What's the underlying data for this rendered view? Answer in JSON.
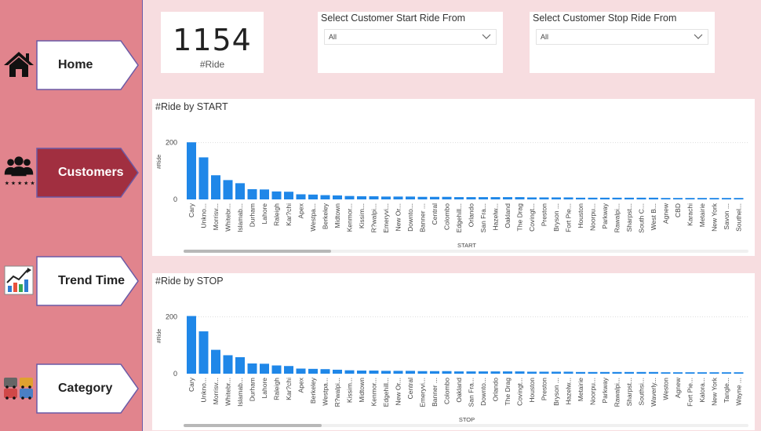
{
  "sidebar": {
    "items": [
      {
        "label": "Home",
        "icon": "home-icon",
        "active": false
      },
      {
        "label": "Customers",
        "icon": "customers-icon",
        "active": true
      },
      {
        "label": "Trend Time",
        "icon": "trend-chart-icon",
        "active": false
      },
      {
        "label": "Category",
        "icon": "cars-icon",
        "active": false
      }
    ]
  },
  "kpi": {
    "value": "1154",
    "label": "#Ride"
  },
  "slicers": [
    {
      "title": "Select Customer Start Ride From",
      "value": "All"
    },
    {
      "title": "Select Customer Stop Ride From",
      "value": "All"
    }
  ],
  "colors": {
    "bar": "#1f87e8",
    "sidebar": "#e1848d",
    "active_nav": "#a12f40"
  },
  "chart_data": [
    {
      "type": "bar",
      "title": "#Ride by START",
      "xlabel": "START",
      "ylabel": "#Ride",
      "ylim": [
        0,
        210
      ],
      "yticks": [
        0,
        200
      ],
      "categories": [
        "Cary",
        "Unkno...",
        "Morrisv...",
        "Whitebr...",
        "Islamab...",
        "Durham",
        "Lahore",
        "Raleigh",
        "Kar?chi",
        "Apex",
        "Westpa...",
        "Berkeley",
        "Midtown",
        "Kenmor...",
        "Kissim...",
        "R?walpi...",
        "Emeryvi...",
        "New Or...",
        "Downto...",
        "Banner ...",
        "Central",
        "Colombo",
        "Edgehill...",
        "Orlando",
        "San Fra...",
        "Hazelw...",
        "Oakland",
        "The Drag",
        "Covingt...",
        "Preston",
        "Bryson ...",
        "Fort Pie...",
        "Houston",
        "Noorpu...",
        "Parkway",
        "Rawalpi...",
        "Sharpst...",
        "South C...",
        "West B...",
        "Agnew",
        "CBD",
        "Karachi",
        "Metairie",
        "New York",
        "Savon ...",
        "Southel..."
      ],
      "values": [
        201,
        148,
        85,
        68,
        57,
        36,
        35,
        28,
        27,
        18,
        17,
        15,
        14,
        12,
        11,
        11,
        10,
        10,
        10,
        9,
        9,
        9,
        8,
        8,
        8,
        8,
        8,
        8,
        7,
        7,
        7,
        7,
        6,
        6,
        6,
        6,
        6,
        6,
        6,
        5,
        5,
        5,
        5,
        5,
        5,
        5
      ],
      "grid": true,
      "legend": "none"
    },
    {
      "type": "bar",
      "title": "#Ride by STOP",
      "xlabel": "STOP",
      "ylabel": "#Ride",
      "ylim": [
        0,
        210
      ],
      "yticks": [
        0,
        200
      ],
      "categories": [
        "Cary",
        "Unkno...",
        "Morrisv...",
        "Whitebr...",
        "Islamab...",
        "Durham",
        "Lahore",
        "Raleigh",
        "Kar?chi",
        "Apex",
        "Berkeley",
        "Westpa...",
        "R?walpi...",
        "Kissim...",
        "Midtown",
        "Kenmor...",
        "Edgehill...",
        "New Or...",
        "Central",
        "Emeryvi...",
        "Banner ...",
        "Colombo",
        "Oakland",
        "San Fra...",
        "Downto...",
        "Orlando",
        "The Drag",
        "Covingt...",
        "Houston",
        "Preston",
        "Bryson ...",
        "Hazelw...",
        "Metairie",
        "Noorpu...",
        "Parkway",
        "Rawalpi...",
        "Sharpst...",
        "Southsi...",
        "Waverly...",
        "Weston",
        "Agnew",
        "Fort Pie...",
        "Kalora...",
        "New York",
        "Tangle...",
        "Wayne ..."
      ],
      "values": [
        203,
        149,
        84,
        65,
        58,
        36,
        35,
        29,
        27,
        18,
        17,
        16,
        14,
        12,
        11,
        11,
        10,
        10,
        10,
        9,
        9,
        9,
        8,
        8,
        8,
        8,
        8,
        8,
        7,
        7,
        7,
        7,
        6,
        6,
        6,
        6,
        6,
        6,
        6,
        5,
        5,
        5,
        5,
        5,
        5,
        5
      ],
      "grid": true,
      "legend": "none"
    }
  ]
}
